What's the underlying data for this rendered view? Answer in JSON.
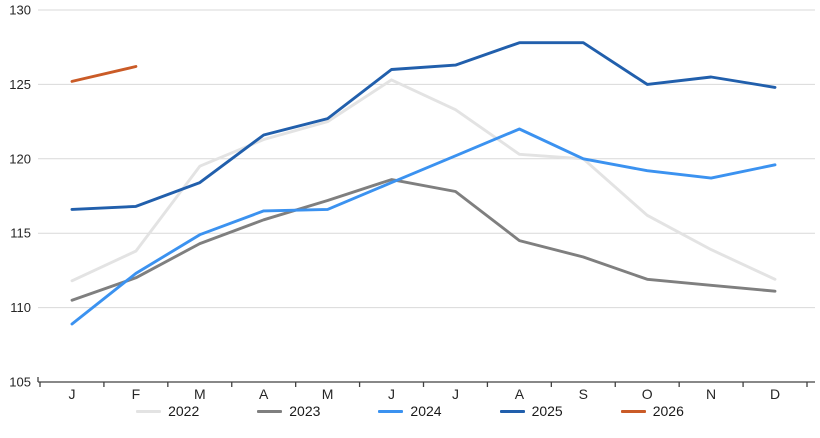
{
  "chart_data": {
    "type": "line",
    "title": "",
    "x_categories": [
      "J",
      "F",
      "M",
      "A",
      "M",
      "J",
      "J",
      "A",
      "S",
      "O",
      "N",
      "D"
    ],
    "y_axis": {
      "min": 105,
      "max": 130,
      "step": 5,
      "tick_labels": [
        "105",
        "110",
        "115",
        "120",
        "125",
        "130"
      ]
    },
    "grid": true,
    "legend_position": "bottom",
    "colors": {
      "grid": "#d9d9d9",
      "axis": "#404040",
      "tick_text": "#262626"
    },
    "series": [
      {
        "name": "2022",
        "color": "#e3e3e3",
        "values": [
          111.8,
          113.8,
          119.5,
          121.3,
          122.5,
          125.3,
          123.3,
          120.3,
          120.0,
          116.2,
          113.9,
          111.9
        ]
      },
      {
        "name": "2023",
        "color": "#7f7f7f",
        "values": [
          110.5,
          112.0,
          114.3,
          115.9,
          117.2,
          118.6,
          117.8,
          114.5,
          113.4,
          111.9,
          111.5,
          111.1
        ]
      },
      {
        "name": "2024",
        "color": "#3b92f0",
        "values": [
          108.9,
          112.3,
          114.9,
          116.5,
          116.6,
          118.4,
          120.2,
          122.0,
          120.0,
          119.2,
          118.7,
          119.6
        ]
      },
      {
        "name": "2025",
        "color": "#215fac",
        "values": [
          116.6,
          116.8,
          118.4,
          121.6,
          122.7,
          126.0,
          126.3,
          127.8,
          127.8,
          125.0,
          125.5,
          124.8
        ]
      },
      {
        "name": "2026",
        "color": "#ca5b27",
        "values": [
          125.2,
          126.2
        ]
      }
    ]
  }
}
